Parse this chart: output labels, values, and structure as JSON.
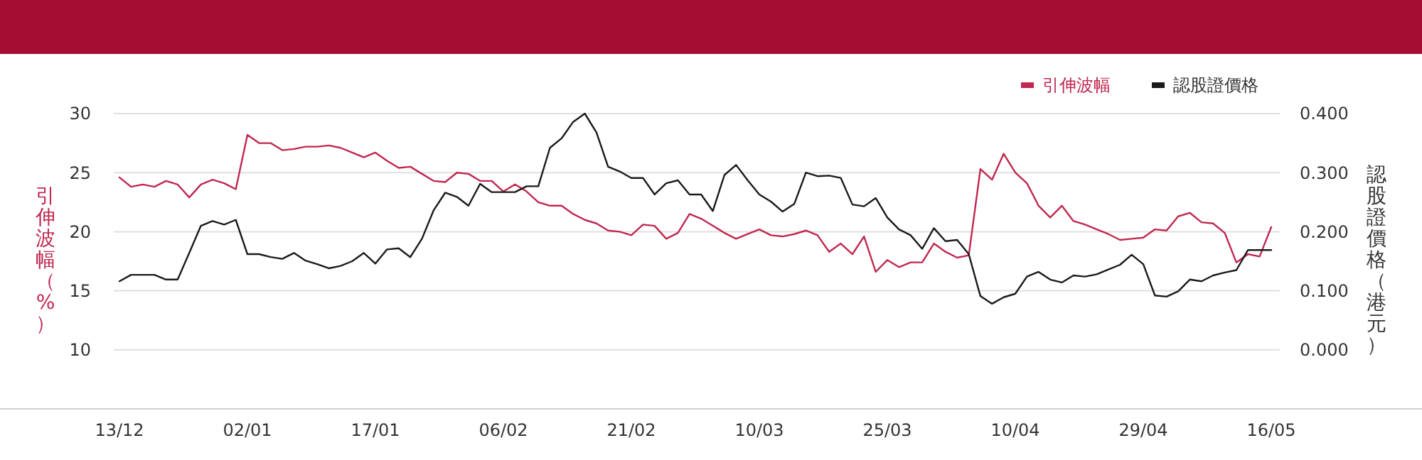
{
  "chart_data": {
    "type": "line",
    "ylabel": "引伸波幅（%）",
    "y2label": "認股證價格（港元）",
    "categories": [
      "13/12",
      null,
      null,
      null,
      null,
      null,
      null,
      null,
      null,
      null,
      null,
      "02/01",
      null,
      null,
      null,
      null,
      null,
      null,
      null,
      null,
      null,
      null,
      "17/01",
      null,
      null,
      null,
      null,
      null,
      null,
      null,
      null,
      null,
      null,
      "06/02",
      null,
      null,
      null,
      null,
      null,
      null,
      null,
      null,
      null,
      null,
      "21/02",
      null,
      null,
      null,
      null,
      null,
      null,
      null,
      null,
      null,
      null,
      "10/03",
      null,
      null,
      null,
      null,
      null,
      null,
      null,
      null,
      null,
      null,
      "25/03",
      null,
      null,
      null,
      null,
      null,
      null,
      null,
      null,
      null,
      null,
      "10/04",
      null,
      null,
      null,
      null,
      null,
      null,
      null,
      null,
      null,
      null,
      "29/04",
      null,
      null,
      null,
      null,
      null,
      null,
      null,
      null,
      null,
      null,
      "16/05"
    ],
    "series": [
      {
        "name": "引伸波幅",
        "color": "#c0284f",
        "values": [
          24.6,
          23.8,
          24.0,
          23.8,
          24.3,
          24.0,
          22.9,
          24.0,
          24.4,
          24.1,
          23.6,
          28.2,
          27.5,
          27.5,
          26.9,
          27.0,
          27.2,
          27.2,
          27.3,
          27.1,
          26.7,
          26.3,
          26.7,
          26.0,
          25.4,
          25.5,
          24.9,
          24.3,
          24.2,
          25.0,
          24.9,
          24.3,
          24.3,
          23.4,
          24.0,
          23.4,
          22.5,
          22.2,
          22.2,
          21.5,
          21.0,
          20.7,
          20.1,
          20.0,
          19.7,
          20.6,
          20.5,
          19.4,
          19.9,
          21.5,
          21.1,
          20.5,
          19.9,
          19.4,
          19.8,
          20.2,
          19.7,
          19.6,
          19.8,
          20.1,
          19.7,
          18.3,
          19.0,
          18.1,
          19.6,
          16.6,
          17.6,
          17.0,
          17.4,
          17.4,
          19.0,
          18.3,
          17.8,
          18.0,
          25.3,
          24.4,
          26.6,
          25.0,
          24.1,
          22.2,
          21.2,
          22.2,
          20.9,
          20.6,
          20.2,
          19.8,
          19.3,
          19.4,
          19.5,
          20.2,
          20.1,
          21.3,
          21.6,
          20.8,
          20.7,
          19.9,
          17.4,
          18.1,
          17.9,
          20.4
        ]
      },
      {
        "name": "認股證價格",
        "color": "#1a1a1a",
        "axis": "y2",
        "values": [
          0.116,
          0.127,
          0.127,
          0.127,
          0.119,
          0.119,
          0.164,
          0.21,
          0.218,
          0.212,
          0.22,
          0.162,
          0.162,
          0.157,
          0.154,
          0.164,
          0.151,
          0.145,
          0.138,
          0.142,
          0.15,
          0.164,
          0.146,
          0.17,
          0.172,
          0.157,
          0.188,
          0.236,
          0.266,
          0.259,
          0.244,
          0.281,
          0.267,
          0.267,
          0.267,
          0.277,
          0.277,
          0.342,
          0.358,
          0.386,
          0.4,
          0.368,
          0.31,
          0.302,
          0.291,
          0.291,
          0.263,
          0.282,
          0.287,
          0.263,
          0.263,
          0.235,
          0.296,
          0.313,
          0.287,
          0.263,
          0.251,
          0.234,
          0.247,
          0.3,
          0.294,
          0.295,
          0.291,
          0.246,
          0.243,
          0.257,
          0.224,
          0.204,
          0.194,
          0.171,
          0.206,
          0.184,
          0.186,
          0.162,
          0.091,
          0.078,
          0.089,
          0.095,
          0.124,
          0.132,
          0.119,
          0.114,
          0.126,
          0.124,
          0.128,
          0.136,
          0.144,
          0.161,
          0.145,
          0.092,
          0.09,
          0.099,
          0.119,
          0.116,
          0.126,
          0.131,
          0.135,
          0.169,
          0.169,
          0.169
        ]
      }
    ],
    "ylim": [
      5,
      30
    ],
    "yticks": [
      10,
      15,
      20,
      25,
      30
    ],
    "y2lim": [
      -0.1,
      0.4
    ],
    "y2ticks": [
      {
        "value": 0,
        "label": "0.000"
      },
      {
        "value": 0.1,
        "label": "0.100"
      },
      {
        "value": 0.2,
        "label": "0.200"
      },
      {
        "value": 0.3,
        "label": "0.300"
      },
      {
        "value": 0.4,
        "label": "0.400"
      }
    ],
    "grid": "y",
    "legend": "top right"
  }
}
